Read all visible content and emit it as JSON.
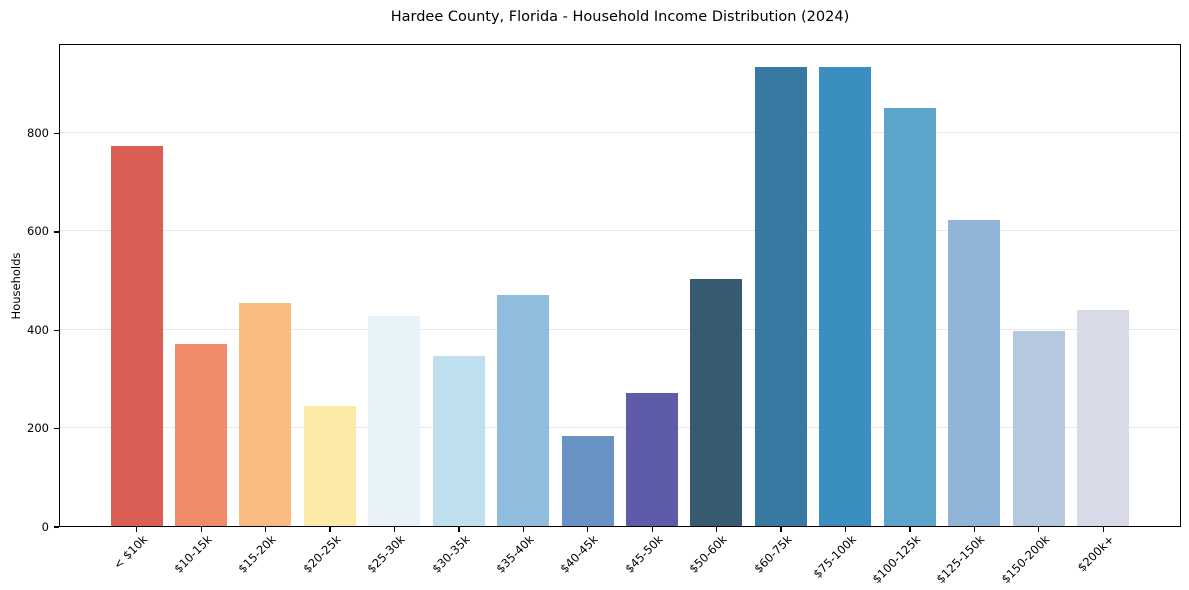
{
  "figure": {
    "background": "#ffffff",
    "axis_color": "#000000",
    "grid_color": "#e7e7e7"
  },
  "chart_data": {
    "type": "bar",
    "title": "Hardee County, Florida - Household Income Distribution (2024)",
    "xlabel": "",
    "ylabel": "Households",
    "categories": [
      "< $10k",
      "$10-15k",
      "$15-20k",
      "$20-25k",
      "$25-30k",
      "$30-35k",
      "$35-40k",
      "$40-45k",
      "$45-50k",
      "$50-60k",
      "$60-75k",
      "$75-100k",
      "$100-125k",
      "$125-150k",
      "$150-200k",
      "$200k+"
    ],
    "values": [
      773,
      371,
      453,
      245,
      427,
      346,
      470,
      183,
      271,
      503,
      934,
      934,
      849,
      623,
      396,
      440
    ],
    "bar_colors": [
      "#d95f55",
      "#f18a68",
      "#fbba7f",
      "#fde9a6",
      "#e6f2f7",
      "#bedfee",
      "#90bddd",
      "#6a93c5",
      "#5d5ca9",
      "#365a70",
      "#3779a1",
      "#3a8ec0",
      "#5ca5ca",
      "#90b5d8",
      "#b5c8df",
      "#d8dae8"
    ],
    "yticks": [
      0,
      200,
      400,
      600,
      800
    ],
    "ylim": [
      0,
      982
    ],
    "grid": "horizontal",
    "legend": "none",
    "xtick_rotation_deg": 45
  }
}
